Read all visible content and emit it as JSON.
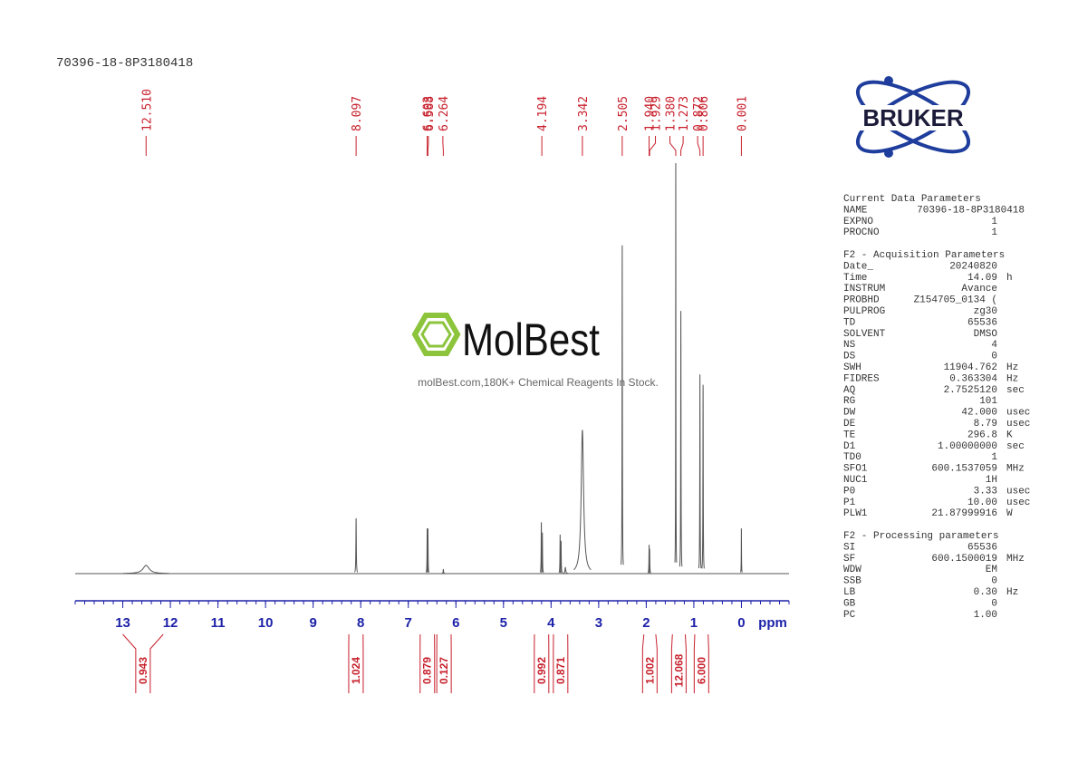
{
  "chart_data": {
    "type": "nmr",
    "title": "70396-18-8P3180418",
    "x_label": "ppm",
    "xlim": [
      14,
      -1
    ],
    "xticks": [
      13,
      12,
      11,
      10,
      9,
      8,
      7,
      6,
      5,
      4,
      3,
      2,
      1,
      0
    ],
    "minor_xtick_step": 0.2,
    "peaks": [
      {
        "value": 12.51,
        "label": "12.510"
      },
      {
        "value": 8.097,
        "label": "8.097"
      },
      {
        "value": 6.603,
        "label": "6.603"
      },
      {
        "value": 6.588,
        "label": "6.588"
      },
      {
        "value": 6.264,
        "label": "6.264"
      },
      {
        "value": 4.194,
        "label": "4.194"
      },
      {
        "value": 3.342,
        "label": "3.342"
      },
      {
        "value": 2.505,
        "label": "2.505"
      },
      {
        "value": 1.94,
        "label": "1.940"
      },
      {
        "value": 1.929,
        "label": "1.929"
      },
      {
        "value": 1.38,
        "label": "1.380"
      },
      {
        "value": 1.273,
        "label": "1.273"
      },
      {
        "value": 0.872,
        "label": "0.872"
      },
      {
        "value": 0.806,
        "label": "0.806"
      },
      {
        "value": 0.001,
        "label": "0.001"
      }
    ],
    "integrals": [
      {
        "range": [
          13.0,
          12.15
        ],
        "value": 0.943
      },
      {
        "range": [
          8.25,
          7.95
        ],
        "value": 1.024
      },
      {
        "range": [
          6.75,
          6.45
        ],
        "value": 0.879
      },
      {
        "range": [
          6.4,
          6.1
        ],
        "value": 0.127
      },
      {
        "range": [
          4.35,
          4.05
        ],
        "value": 0.992
      },
      {
        "range": [
          3.95,
          3.65
        ],
        "value": 0.871
      },
      {
        "range": [
          2.05,
          1.8
        ],
        "value": 1.002
      },
      {
        "range": [
          1.45,
          1.18
        ],
        "value": 12.068
      },
      {
        "range": [
          0.98,
          0.7
        ],
        "value": 6,
        "label": "6.000"
      }
    ],
    "signals": {
      "ppm": [
        12.51,
        8.097,
        6.603,
        6.588,
        6.264,
        4.205,
        4.183,
        3.81,
        3.79,
        3.7,
        3.342,
        2.505,
        1.94,
        1.929,
        1.38,
        1.273,
        0.872,
        0.806,
        0.001
      ],
      "intensity": [
        2,
        13.5,
        11,
        11,
        1,
        12.5,
        10,
        9.5,
        8,
        1.5,
        35,
        80,
        7,
        6,
        100,
        64,
        48.5,
        46,
        11
      ],
      "width": [
        0.08,
        0.005,
        0.004,
        0.004,
        0.006,
        0.004,
        0.004,
        0.004,
        0.004,
        0.01,
        0.03,
        0.004,
        0.004,
        0.004,
        0.003,
        0.004,
        0.004,
        0.004,
        0.003
      ]
    },
    "color": "#555555",
    "label_color": "#c8202c",
    "axis_color": "#1e22a8"
  },
  "logos": {
    "bruker": "BRUKER",
    "watermark": "MolBest",
    "tagline": "molBest.com,180K+ Chemical Reagents In Stock."
  },
  "parameters": [
    {
      "title": "Current Data Parameters",
      "rows": [
        [
          "NAME",
          "70396-18-8P3180418"
        ],
        [
          "EXPNO",
          "1"
        ],
        [
          "PROCNO",
          "1"
        ]
      ]
    },
    {
      "title": "F2 - Acquisition Parameters",
      "rows": [
        [
          "Date_",
          "20240820"
        ],
        [
          "Time",
          "14.09",
          "h"
        ],
        [
          "INSTRUM",
          "Avance"
        ],
        [
          "PROBHD",
          "Z154705_0134 ("
        ],
        [
          "PULPROG",
          "zg30"
        ],
        [
          "TD",
          "65536"
        ],
        [
          "SOLVENT",
          "DMSO"
        ],
        [
          "NS",
          "4"
        ],
        [
          "DS",
          "0"
        ],
        [
          "SWH",
          "11904.762",
          "Hz"
        ],
        [
          "FIDRES",
          "0.363304",
          "Hz"
        ],
        [
          "AQ",
          "2.7525120",
          "sec"
        ],
        [
          "RG",
          "101"
        ],
        [
          "DW",
          "42.000",
          "usec"
        ],
        [
          "DE",
          "8.79",
          "usec"
        ],
        [
          "TE",
          "296.8",
          "K"
        ],
        [
          "D1",
          "1.00000000",
          "sec"
        ],
        [
          "TD0",
          "1"
        ],
        [
          "SFO1",
          "600.1537059",
          "MHz"
        ],
        [
          "NUC1",
          "1H"
        ],
        [
          "P0",
          "3.33",
          "usec"
        ],
        [
          "P1",
          "10.00",
          "usec"
        ],
        [
          "PLW1",
          "21.87999916",
          "W"
        ]
      ]
    },
    {
      "title": "F2 - Processing parameters",
      "rows": [
        [
          "SI",
          "65536"
        ],
        [
          "SF",
          "600.1500019",
          "MHz"
        ],
        [
          "WDW",
          "EM"
        ],
        [
          "SSB",
          "0"
        ],
        [
          "LB",
          "0.30",
          "Hz"
        ],
        [
          "GB",
          "0"
        ],
        [
          "PC",
          "1.00"
        ]
      ]
    }
  ]
}
